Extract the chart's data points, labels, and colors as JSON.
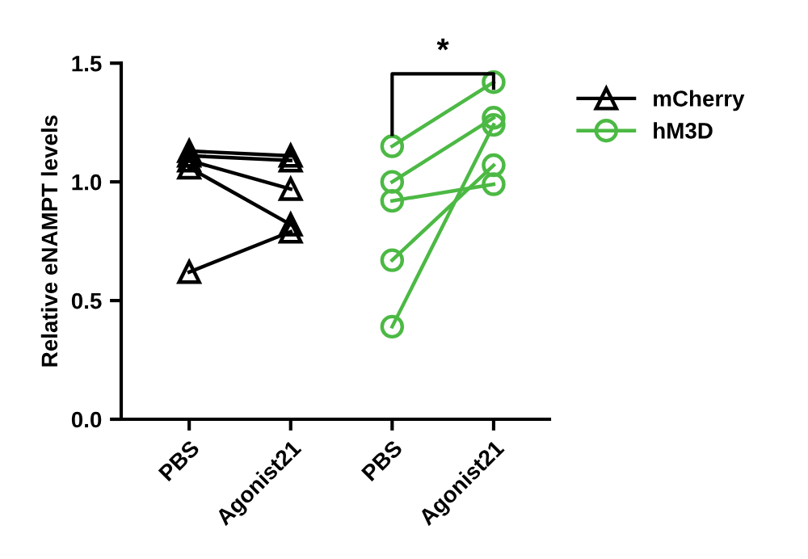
{
  "chart_data": {
    "type": "line",
    "ylabel": "Relative eNAMPT levels",
    "categories": [
      "PBS",
      "Agonist21",
      "PBS",
      "Agonist21"
    ],
    "ylim": [
      0,
      1.5
    ],
    "yticks": [
      {
        "value": 0,
        "label": "0.0"
      },
      0.5,
      {
        "value": 1,
        "label": "1.0"
      },
      1.5
    ],
    "grid": false,
    "legend": "right",
    "line_style": "solid",
    "annotations": [
      "*"
    ],
    "series": [
      {
        "name": "mCherry",
        "color": "#000000",
        "marker": "triangle",
        "values": [
          1.13,
          1.11,
          null,
          null
        ]
      },
      {
        "color": "#000000",
        "marker": "triangle",
        "values": [
          1.11,
          1.09,
          null,
          null
        ]
      },
      {
        "color": "#000000",
        "marker": "triangle",
        "values": [
          1.09,
          0.97,
          null,
          null
        ]
      },
      {
        "color": "#000000",
        "marker": "triangle",
        "values": [
          1.06,
          0.82,
          null,
          null
        ]
      },
      {
        "color": "#000000",
        "marker": "triangle",
        "values": [
          0.62,
          0.79,
          null,
          null
        ]
      },
      {
        "name": "hM3D",
        "color": "#4cb944",
        "marker": "circle",
        "values": [
          null,
          null,
          1.15,
          1.42
        ]
      },
      {
        "color": "#4cb944",
        "marker": "circle",
        "values": [
          null,
          null,
          1.0,
          1.27
        ]
      },
      {
        "color": "#4cb944",
        "marker": "circle",
        "values": [
          null,
          null,
          0.92,
          0.99
        ]
      },
      {
        "color": "#4cb944",
        "marker": "circle",
        "values": [
          null,
          null,
          0.67,
          1.07
        ]
      },
      {
        "color": "#4cb944",
        "marker": "circle",
        "values": [
          null,
          null,
          0.39,
          1.24
        ]
      }
    ]
  }
}
